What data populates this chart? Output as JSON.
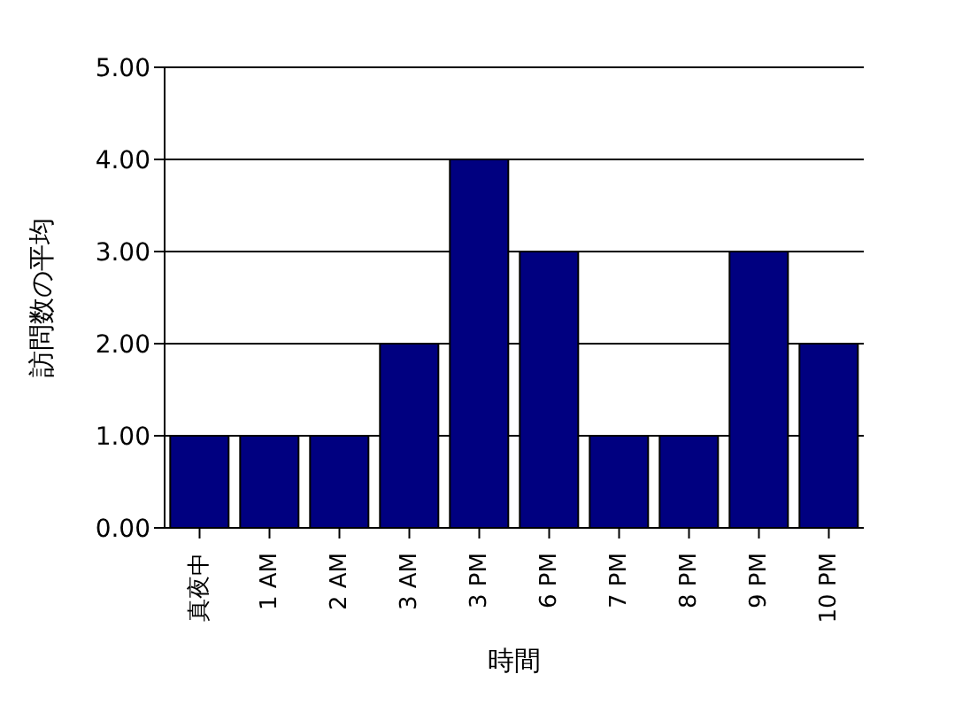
{
  "chart_data": {
    "type": "bar",
    "xlabel": "時間",
    "ylabel": "訪問数の平均",
    "categories": [
      "真夜中",
      "1 AM",
      "2 AM",
      "3 AM",
      "3 PM",
      "6 PM",
      "7 PM",
      "8 PM",
      "9 PM",
      "10 PM"
    ],
    "values": [
      1,
      1,
      1,
      2,
      4,
      3,
      1,
      1,
      3,
      2
    ],
    "color": "#000080",
    "ylim": [
      0,
      5
    ],
    "yticks": [
      {
        "value": 0,
        "label": "0.00"
      },
      {
        "value": 1,
        "label": "1.00"
      },
      {
        "value": 2,
        "label": "2.00"
      },
      {
        "value": 3,
        "label": "3.00"
      },
      {
        "value": 4,
        "label": "4.00"
      },
      {
        "value": 5,
        "label": "5.00"
      }
    ],
    "grid": "y",
    "legend": false
  }
}
